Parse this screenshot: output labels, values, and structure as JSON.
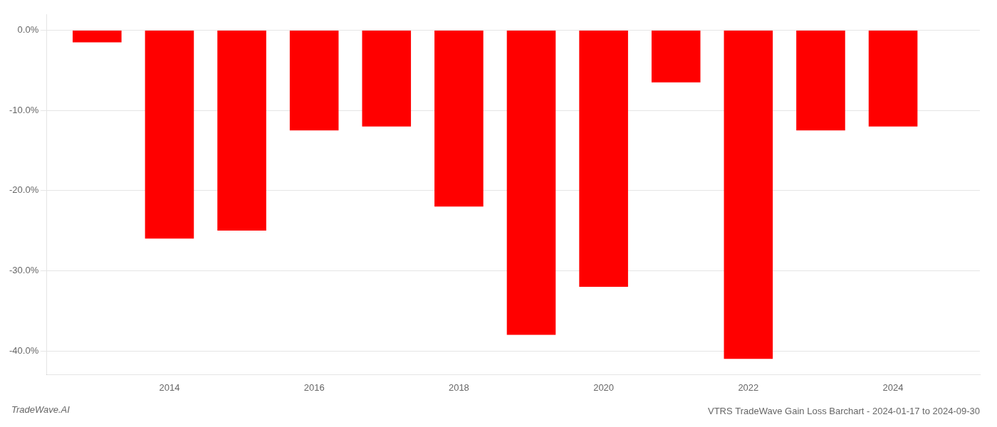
{
  "chart_data": {
    "type": "bar",
    "title": "VTRS TradeWave Gain Loss Barchart - 2024-01-17 to 2024-09-30",
    "annotations": [
      "TradeWave.AI"
    ],
    "x": [
      2013,
      2014,
      2015,
      2016,
      2017,
      2018,
      2019,
      2020,
      2021,
      2022,
      2023,
      2024
    ],
    "values": [
      -1.5,
      -26.0,
      -25.0,
      -12.5,
      -12.0,
      -22.0,
      -38.0,
      -32.0,
      -6.5,
      -41.0,
      -12.5,
      -12.0
    ],
    "color": "#ff0000",
    "xlim": [
      2012.3,
      2025.2
    ],
    "xticks": [
      2014,
      2016,
      2018,
      2020,
      2022,
      2024
    ],
    "ylim": [
      -43,
      2
    ],
    "yticks": [
      {
        "value": 0,
        "label": "0.0%"
      },
      {
        "value": -10,
        "label": "-10.0%"
      },
      {
        "value": -20,
        "label": "-20.0%"
      },
      {
        "value": -30,
        "label": "-30.0%"
      },
      {
        "value": -40,
        "label": "-40.0%"
      }
    ],
    "grid": "y"
  }
}
